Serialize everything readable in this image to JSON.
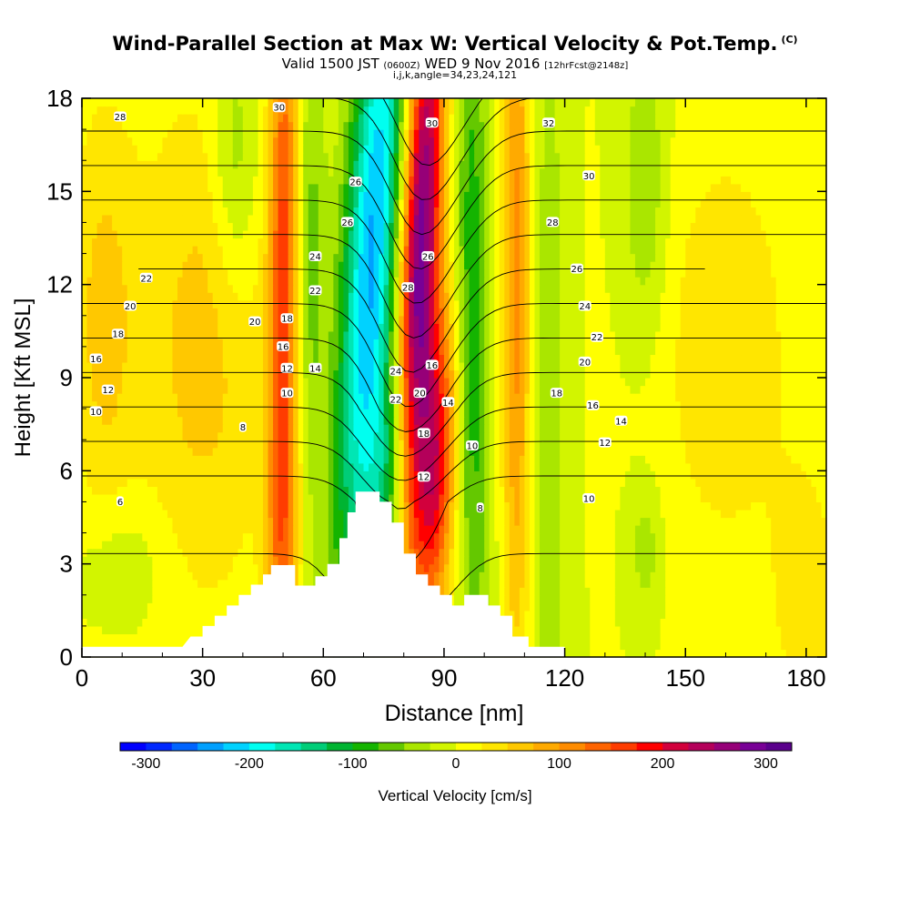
{
  "header": {
    "title": "Wind-Parallel Section at Max W: Vertical Velocity & Pot.Temp.",
    "copyright": "(C)",
    "valid_prefix": "Valid 1500 JST",
    "valid_z": "(0600Z)",
    "valid_date": "WED 9 Nov 2016",
    "valid_fcst": "[12hrFcst@2148z]",
    "indices": "i,j,k,angle=34,23,24,121"
  },
  "chart_data": {
    "type": "heatmap",
    "xlabel": "Distance [nm]",
    "ylabel": "Height [Kft MSL]",
    "xlim": [
      0,
      185
    ],
    "ylim": [
      0,
      18
    ],
    "x_ticks": [
      "0",
      "30",
      "60",
      "90",
      "120",
      "150",
      "180"
    ],
    "y_ticks": [
      "0",
      "3",
      "6",
      "9",
      "12",
      "15",
      "18"
    ],
    "colorbar": {
      "label": "Vertical Velocity [cm/s]",
      "range": [
        -325,
        325
      ],
      "ticks": [
        "-300",
        "-200",
        "-100",
        "0",
        "100",
        "200",
        "300"
      ],
      "colors": [
        "#0000ff",
        "#0028ff",
        "#0064ff",
        "#00a0ff",
        "#00d2ff",
        "#00fff0",
        "#00e6b4",
        "#00cd78",
        "#00b432",
        "#14b400",
        "#64c800",
        "#aae600",
        "#d2f500",
        "#ffff00",
        "#ffe600",
        "#ffc800",
        "#ffaa00",
        "#ff8c00",
        "#ff6400",
        "#ff3c00",
        "#ff0000",
        "#d2003c",
        "#b4005a",
        "#960078",
        "#780096",
        "#5a008c"
      ]
    },
    "terrain": [
      [
        0,
        0.33
      ],
      [
        25,
        0.33
      ],
      [
        27,
        0.66
      ],
      [
        30,
        0.66
      ],
      [
        30,
        1.0
      ],
      [
        33,
        1.0
      ],
      [
        33,
        1.33
      ],
      [
        36,
        1.33
      ],
      [
        36,
        1.66
      ],
      [
        39,
        1.66
      ],
      [
        39,
        2.0
      ],
      [
        42,
        2.0
      ],
      [
        42,
        2.33
      ],
      [
        45,
        2.33
      ],
      [
        45,
        2.66
      ],
      [
        47,
        2.66
      ],
      [
        47,
        2.96
      ],
      [
        53,
        2.96
      ],
      [
        53,
        2.3
      ],
      [
        58,
        2.3
      ],
      [
        58,
        2.6
      ],
      [
        61,
        2.6
      ],
      [
        61,
        3.0
      ],
      [
        64,
        3.0
      ],
      [
        64,
        3.83
      ],
      [
        66,
        3.83
      ],
      [
        66,
        4.66
      ],
      [
        68,
        4.66
      ],
      [
        68,
        5.33
      ],
      [
        74,
        5.33
      ],
      [
        74,
        5.0
      ],
      [
        77,
        5.0
      ],
      [
        77,
        4.33
      ],
      [
        80,
        4.33
      ],
      [
        80,
        3.33
      ],
      [
        83,
        3.33
      ],
      [
        83,
        2.66
      ],
      [
        86,
        2.66
      ],
      [
        86,
        2.3
      ],
      [
        89,
        2.3
      ],
      [
        89,
        2.0
      ],
      [
        92,
        2.0
      ],
      [
        92,
        1.66
      ],
      [
        95,
        1.66
      ],
      [
        95,
        2.0
      ],
      [
        101,
        2.0
      ],
      [
        101,
        1.66
      ],
      [
        104,
        1.66
      ],
      [
        104,
        1.33
      ],
      [
        107,
        1.33
      ],
      [
        107,
        0.66
      ],
      [
        111,
        0.66
      ],
      [
        111,
        0.33
      ],
      [
        120,
        0.33
      ],
      [
        120,
        0
      ]
    ],
    "wind_fields": [
      {
        "value": 300,
        "x": 84,
        "y": 13,
        "sx": 3.5,
        "sy": 7.0,
        "tilt": 0.32
      },
      {
        "value": 190,
        "x": 88,
        "y": 6.0,
        "sx": 3.5,
        "sy": 3.5,
        "tilt": 0.3
      },
      {
        "value": -230,
        "x": 72,
        "y": 13,
        "sx": 5.0,
        "sy": 8.0,
        "tilt": 0.45
      },
      {
        "value": -110,
        "x": 77,
        "y": 5.5,
        "sx": 4.0,
        "sy": 3.0,
        "tilt": 0.4
      },
      {
        "value": 150,
        "x": 50,
        "y": 13,
        "sx": 2.5,
        "sy": 7.0,
        "tilt": 0.05
      },
      {
        "value": 80,
        "x": 50,
        "y": 4.0,
        "sx": 3.0,
        "sy": 3.0,
        "tilt": 0.1
      },
      {
        "value": -55,
        "x": 38,
        "y": 16,
        "sx": 4.0,
        "sy": 3.0,
        "tilt": 0
      },
      {
        "value": -60,
        "x": 57,
        "y": 13,
        "sx": 2.5,
        "sy": 6.0,
        "tilt": 0
      },
      {
        "value": -95,
        "x": 97,
        "y": 11,
        "sx": 3.0,
        "sy": 9.0,
        "tilt": -0.05
      },
      {
        "value": 110,
        "x": 108,
        "y": 12,
        "sx": 2.5,
        "sy": 9.0,
        "tilt": 0
      },
      {
        "value": -45,
        "x": 116,
        "y": 8,
        "sx": 3.0,
        "sy": 10.0,
        "tilt": 0
      },
      {
        "value": 60,
        "x": 30,
        "y": 10,
        "sx": 12.0,
        "sy": 6.0,
        "tilt": 0
      },
      {
        "value": 55,
        "x": 5,
        "y": 11,
        "sx": 6.0,
        "sy": 5.0,
        "tilt": 0
      },
      {
        "value": 45,
        "x": 160,
        "y": 10,
        "sx": 12.0,
        "sy": 5.0,
        "tilt": 0
      },
      {
        "value": -50,
        "x": 140,
        "y": 15,
        "sx": 4.0,
        "sy": 3.5,
        "tilt": 0
      },
      {
        "value": -40,
        "x": 140,
        "y": 3.5,
        "sx": 3.0,
        "sy": 1.5,
        "tilt": 0
      },
      {
        "value": -30,
        "x": 10,
        "y": 3.0,
        "sx": 8.0,
        "sy": 1.5,
        "tilt": 0
      },
      {
        "value": 40,
        "x": 180,
        "y": 2.0,
        "sx": 6.0,
        "sy": 3.0,
        "tilt": 0
      }
    ],
    "theta_field": {
      "base_per_kft": 0.3,
      "top_gradient_per_kft": 1.5,
      "wave_x": 80,
      "wave_width_nm": 12,
      "wave_strength": 6.0
    },
    "theta_contour_levels": [
      6,
      8,
      10,
      12,
      14,
      16,
      18,
      20,
      22,
      24,
      26,
      28,
      30,
      32
    ],
    "theta_labels": [
      {
        "text": "28",
        "x": 9.5,
        "y": 17.4
      },
      {
        "text": "30",
        "x": 49,
        "y": 17.7
      },
      {
        "text": "30",
        "x": 87,
        "y": 17.2
      },
      {
        "text": "32",
        "x": 116,
        "y": 17.2
      },
      {
        "text": "30",
        "x": 126,
        "y": 15.5
      },
      {
        "text": "26",
        "x": 68,
        "y": 15.3
      },
      {
        "text": "26",
        "x": 66,
        "y": 14.0
      },
      {
        "text": "28",
        "x": 117,
        "y": 14.0
      },
      {
        "text": "24",
        "x": 58,
        "y": 12.9
      },
      {
        "text": "26",
        "x": 86,
        "y": 12.9
      },
      {
        "text": "26",
        "x": 123,
        "y": 12.5
      },
      {
        "text": "22",
        "x": 16,
        "y": 12.2
      },
      {
        "text": "22",
        "x": 58,
        "y": 11.8
      },
      {
        "text": "28",
        "x": 81,
        "y": 11.9
      },
      {
        "text": "20",
        "x": 12,
        "y": 11.3
      },
      {
        "text": "24",
        "x": 125,
        "y": 11.3
      },
      {
        "text": "20",
        "x": 43,
        "y": 10.8
      },
      {
        "text": "18",
        "x": 51,
        "y": 10.9
      },
      {
        "text": "18",
        "x": 9,
        "y": 10.4
      },
      {
        "text": "22",
        "x": 128,
        "y": 10.3
      },
      {
        "text": "16",
        "x": 50,
        "y": 10.0
      },
      {
        "text": "16",
        "x": 3.5,
        "y": 9.6
      },
      {
        "text": "20",
        "x": 125,
        "y": 9.5
      },
      {
        "text": "12",
        "x": 51,
        "y": 9.3
      },
      {
        "text": "14",
        "x": 58,
        "y": 9.3
      },
      {
        "text": "24",
        "x": 78,
        "y": 9.2
      },
      {
        "text": "16",
        "x": 87,
        "y": 9.4
      },
      {
        "text": "12",
        "x": 6.5,
        "y": 8.6
      },
      {
        "text": "10",
        "x": 51,
        "y": 8.5
      },
      {
        "text": "22",
        "x": 78,
        "y": 8.3
      },
      {
        "text": "20",
        "x": 84,
        "y": 8.5
      },
      {
        "text": "18",
        "x": 118,
        "y": 8.5
      },
      {
        "text": "14",
        "x": 91,
        "y": 8.2
      },
      {
        "text": "16",
        "x": 127,
        "y": 8.1
      },
      {
        "text": "10",
        "x": 3.5,
        "y": 7.9
      },
      {
        "text": "14",
        "x": 134,
        "y": 7.6
      },
      {
        "text": "8",
        "x": 40,
        "y": 7.4
      },
      {
        "text": "18",
        "x": 85,
        "y": 7.2
      },
      {
        "text": "12",
        "x": 130,
        "y": 6.9
      },
      {
        "text": "10",
        "x": 97,
        "y": 6.8
      },
      {
        "text": "12",
        "x": 85,
        "y": 5.8
      },
      {
        "text": "10",
        "x": 126,
        "y": 5.1
      },
      {
        "text": "6",
        "x": 9.5,
        "y": 5.0
      },
      {
        "text": "8",
        "x": 99,
        "y": 4.8
      }
    ]
  }
}
